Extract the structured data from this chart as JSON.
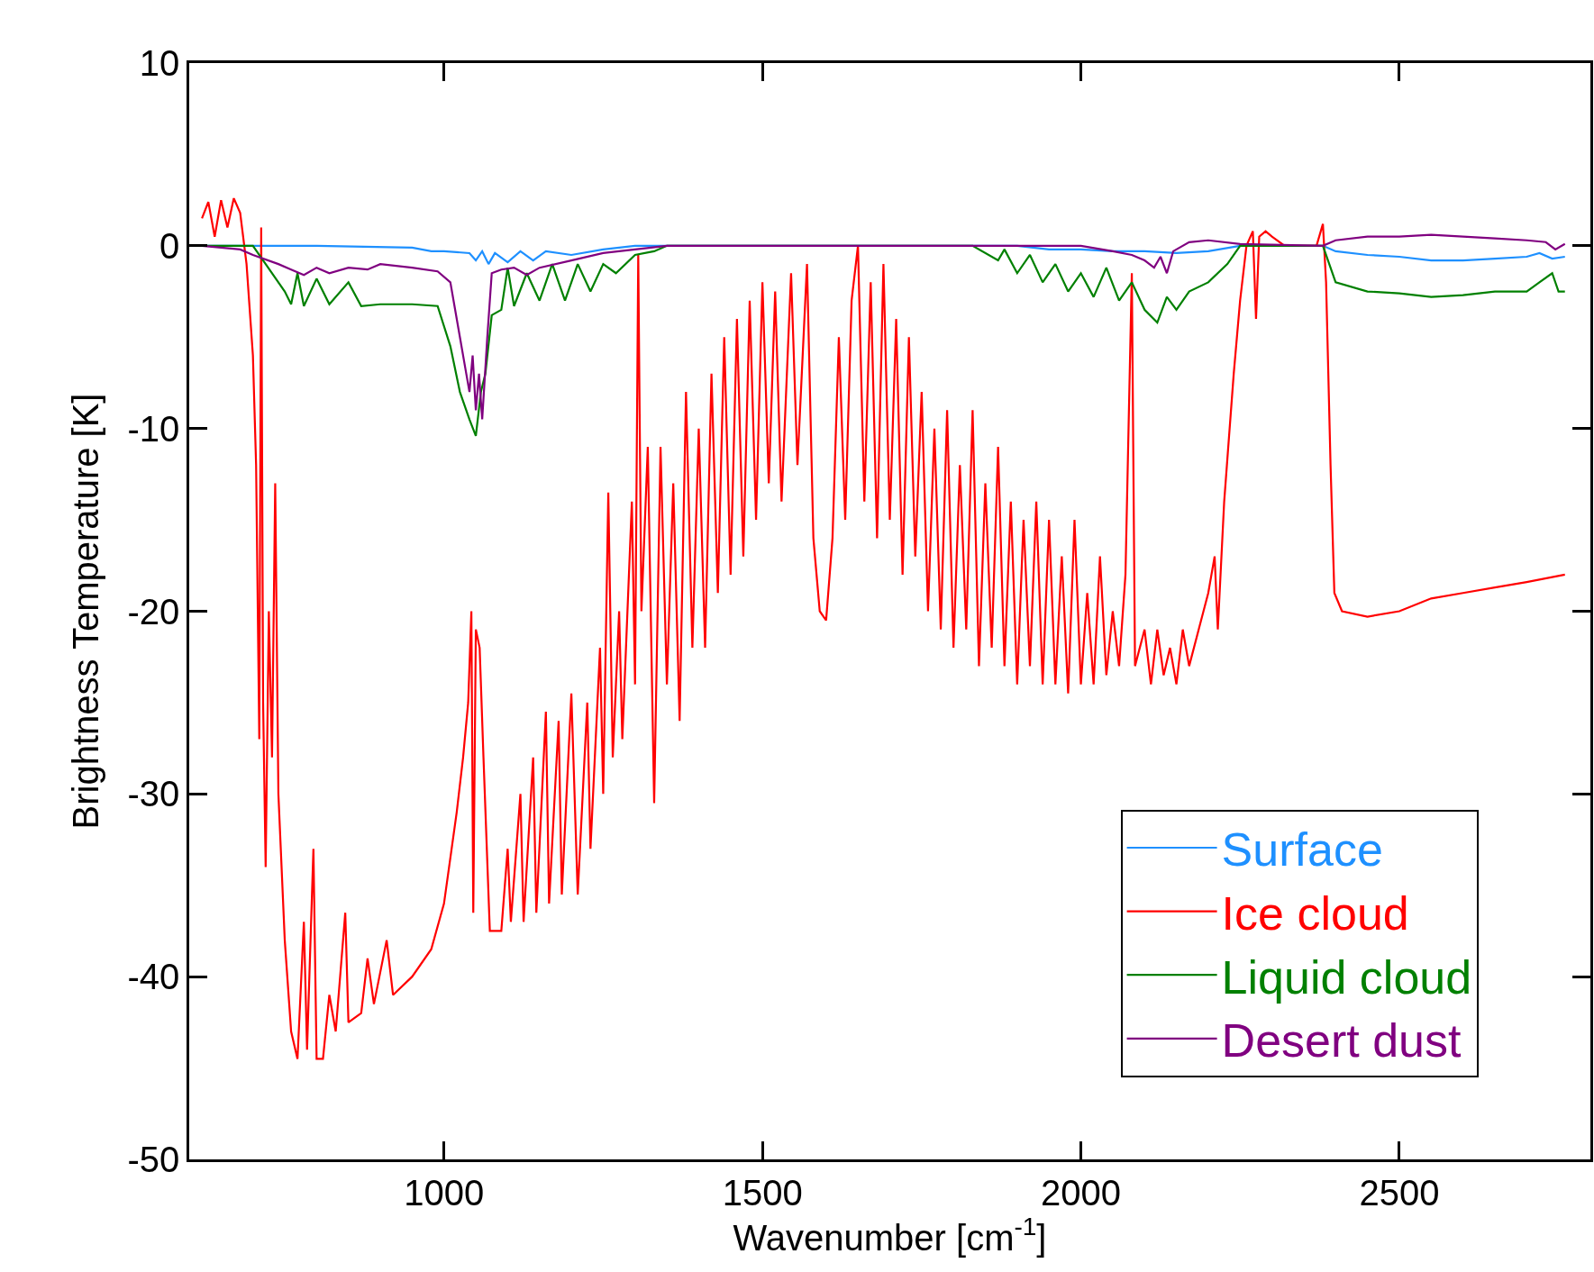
{
  "chart_data": {
    "type": "line",
    "xlabel": "Wavenumber [cm$^{-1}$]",
    "ylabel": "Brightness Temperature [K]",
    "xlim": [
      600,
      2800
    ],
    "ylim": [
      -50,
      10
    ],
    "xticks": [
      1000,
      1500,
      2000,
      2500
    ],
    "yticks": [
      -50,
      -40,
      -30,
      -20,
      -10,
      0,
      10
    ],
    "grid": false,
    "legend": "bottom right",
    "marker": "none",
    "line_style": "solid",
    "series": [
      {
        "name": "Surface",
        "color": "#1e90ff",
        "x": [
          620,
          700,
          800,
          950,
          980,
          1000,
          1040,
          1050,
          1060,
          1070,
          1080,
          1100,
          1120,
          1140,
          1160,
          1200,
          1250,
          1300,
          1900,
          1950,
          2000,
          2050,
          2100,
          2150,
          2200,
          2250,
          2380,
          2400,
          2450,
          2500,
          2550,
          2600,
          2650,
          2700,
          2720,
          2740,
          2760
        ],
        "values": [
          0,
          0,
          0,
          -0.1,
          -0.3,
          -0.3,
          -0.4,
          -0.8,
          -0.3,
          -1,
          -0.4,
          -0.9,
          -0.3,
          -0.8,
          -0.3,
          -0.5,
          -0.2,
          0,
          0,
          -0.2,
          -0.2,
          -0.3,
          -0.3,
          -0.4,
          -0.3,
          0,
          0,
          -0.3,
          -0.5,
          -0.6,
          -0.8,
          -0.8,
          -0.7,
          -0.6,
          -0.4,
          -0.7,
          -0.6
        ]
      },
      {
        "name": "Ice cloud",
        "color": "#ff0000",
        "x": [
          620,
          630,
          640,
          650,
          660,
          670,
          680,
          690,
          700,
          705,
          710,
          713,
          716,
          720,
          725,
          730,
          735,
          740,
          750,
          760,
          770,
          780,
          785,
          795,
          800,
          810,
          820,
          830,
          845,
          850,
          870,
          880,
          890,
          910,
          920,
          950,
          980,
          1000,
          1020,
          1030,
          1038,
          1043,
          1046,
          1050,
          1056,
          1062,
          1072,
          1090,
          1100,
          1105,
          1120,
          1125,
          1140,
          1145,
          1160,
          1165,
          1180,
          1185,
          1200,
          1210,
          1225,
          1230,
          1245,
          1250,
          1258,
          1265,
          1275,
          1280,
          1295,
          1300,
          1305,
          1310,
          1320,
          1330,
          1340,
          1350,
          1360,
          1370,
          1380,
          1390,
          1400,
          1410,
          1420,
          1430,
          1440,
          1450,
          1460,
          1470,
          1480,
          1490,
          1500,
          1510,
          1520,
          1530,
          1545,
          1555,
          1570,
          1580,
          1590,
          1600,
          1610,
          1620,
          1630,
          1640,
          1650,
          1660,
          1670,
          1680,
          1690,
          1700,
          1710,
          1720,
          1730,
          1740,
          1750,
          1760,
          1770,
          1780,
          1790,
          1800,
          1810,
          1820,
          1830,
          1840,
          1850,
          1860,
          1870,
          1880,
          1890,
          1900,
          1910,
          1920,
          1930,
          1940,
          1950,
          1960,
          1970,
          1980,
          1990,
          2000,
          2010,
          2020,
          2030,
          2040,
          2050,
          2060,
          2070,
          2080,
          2085,
          2100,
          2110,
          2120,
          2130,
          2140,
          2150,
          2160,
          2170,
          2185,
          2200,
          2210,
          2215,
          2225,
          2240,
          2250,
          2260,
          2270,
          2275,
          2280,
          2290,
          2300,
          2320,
          2370,
          2380,
          2385,
          2392,
          2398,
          2410,
          2450,
          2500,
          2550,
          2600,
          2650,
          2700,
          2760
        ],
        "values": [
          1.5,
          2.4,
          0.5,
          2.5,
          1,
          2.6,
          1.8,
          -1,
          -6,
          -12,
          -27,
          1,
          -25,
          -34,
          -20,
          -28,
          -13,
          -30,
          -38,
          -43,
          -44.5,
          -37,
          -44,
          -33,
          -44.5,
          -44.5,
          -41,
          -43,
          -36.5,
          -42.5,
          -42,
          -39,
          -41.5,
          -38,
          -41,
          -40,
          -38.5,
          -36,
          -31,
          -28,
          -25,
          -20,
          -36.5,
          -21,
          -22,
          -28,
          -37.5,
          -37.5,
          -33,
          -37,
          -30,
          -37,
          -28,
          -36.5,
          -25.5,
          -36,
          -26,
          -35.5,
          -24.5,
          -35.5,
          -25,
          -33,
          -22,
          -30,
          -13.5,
          -28,
          -20,
          -27,
          -14,
          -24,
          -0.5,
          -20,
          -11,
          -30.5,
          -11,
          -24,
          -13,
          -26,
          -8,
          -22,
          -10,
          -22,
          -7,
          -19,
          -5,
          -18,
          -4,
          -17,
          -3,
          -15,
          -2,
          -13,
          -2.5,
          -14,
          -1.5,
          -12,
          -1,
          -16,
          -20,
          -20.5,
          -16,
          -5,
          -15,
          -3,
          0,
          -14,
          -2,
          -16,
          -1,
          -15,
          -4,
          -18,
          -5,
          -17,
          -8,
          -20,
          -10,
          -21,
          -9,
          -22,
          -12,
          -21,
          -9,
          -23,
          -13,
          -22,
          -11,
          -23,
          -14,
          -24,
          -15,
          -23,
          -14,
          -24,
          -15,
          -24,
          -17,
          -24.5,
          -15,
          -24,
          -19,
          -24,
          -17,
          -23.5,
          -20,
          -23,
          -18,
          -1.5,
          -23,
          -21,
          -24,
          -21,
          -23.5,
          -22,
          -24,
          -21,
          -23,
          -21,
          -19,
          -17,
          -21,
          -14,
          -7,
          -3,
          0,
          0.8,
          -4,
          0.5,
          0.8,
          0.5,
          0,
          0,
          1.2,
          -2,
          -12,
          -19,
          -20,
          -20.3,
          -20,
          -19.3,
          -19,
          -18.7,
          -18.4,
          -18
        ]
      },
      {
        "name": "Liquid cloud",
        "color": "#008000",
        "x": [
          620,
          700,
          720,
          750,
          760,
          770,
          780,
          800,
          820,
          850,
          870,
          900,
          950,
          990,
          1010,
          1025,
          1040,
          1050,
          1058,
          1065,
          1075,
          1090,
          1100,
          1110,
          1130,
          1150,
          1170,
          1190,
          1210,
          1230,
          1250,
          1270,
          1300,
          1330,
          1350,
          1830,
          1870,
          1880,
          1900,
          1920,
          1940,
          1960,
          1980,
          2000,
          2020,
          2040,
          2060,
          2080,
          2100,
          2120,
          2135,
          2150,
          2170,
          2200,
          2230,
          2250,
          2380,
          2390,
          2400,
          2450,
          2500,
          2550,
          2600,
          2650,
          2700,
          2720,
          2740,
          2750,
          2760
        ],
        "values": [
          0,
          0,
          -1,
          -2.5,
          -3.2,
          -1.5,
          -3.3,
          -1.8,
          -3.2,
          -2,
          -3.3,
          -3.2,
          -3.2,
          -3.3,
          -5.5,
          -8,
          -9.5,
          -10.4,
          -8,
          -7,
          -3.8,
          -3.5,
          -1.2,
          -3.3,
          -1.5,
          -3,
          -1,
          -3,
          -1,
          -2.5,
          -1,
          -1.5,
          -0.5,
          -0.3,
          0,
          0,
          -0.8,
          -0.2,
          -1.5,
          -0.5,
          -2,
          -1,
          -2.5,
          -1.5,
          -2.8,
          -1.2,
          -3,
          -2,
          -3.5,
          -4.2,
          -2.8,
          -3.5,
          -2.5,
          -2,
          -1,
          0,
          0,
          -1,
          -2,
          -2.5,
          -2.6,
          -2.8,
          -2.7,
          -2.5,
          -2.5,
          -2,
          -1.5,
          -2.5,
          -2.5
        ]
      },
      {
        "name": "Desert dust",
        "color": "#800080",
        "x": [
          620,
          680,
          700,
          740,
          760,
          780,
          800,
          820,
          850,
          880,
          900,
          950,
          990,
          1010,
          1025,
          1035,
          1040,
          1045,
          1050,
          1055,
          1060,
          1068,
          1075,
          1090,
          1110,
          1130,
          1150,
          1200,
          1250,
          1300,
          1350,
          2000,
          2050,
          2080,
          2100,
          2115,
          2125,
          2135,
          2145,
          2170,
          2200,
          2250,
          2380,
          2400,
          2450,
          2500,
          2550,
          2600,
          2650,
          2700,
          2730,
          2745,
          2760
        ],
        "values": [
          0,
          -0.2,
          -0.5,
          -1,
          -1.3,
          -1.6,
          -1.2,
          -1.5,
          -1.2,
          -1.3,
          -1,
          -1.2,
          -1.4,
          -2,
          -5,
          -7,
          -8,
          -6,
          -9,
          -7,
          -9.5,
          -5,
          -1.5,
          -1.3,
          -1.2,
          -1.6,
          -1.2,
          -0.8,
          -0.4,
          -0.2,
          0,
          0,
          -0.3,
          -0.5,
          -0.8,
          -1.2,
          -0.6,
          -1.5,
          -0.3,
          0.2,
          0.3,
          0.1,
          0,
          0.3,
          0.5,
          0.5,
          0.6,
          0.5,
          0.4,
          0.3,
          0.2,
          -0.2,
          0.1
        ]
      }
    ]
  }
}
